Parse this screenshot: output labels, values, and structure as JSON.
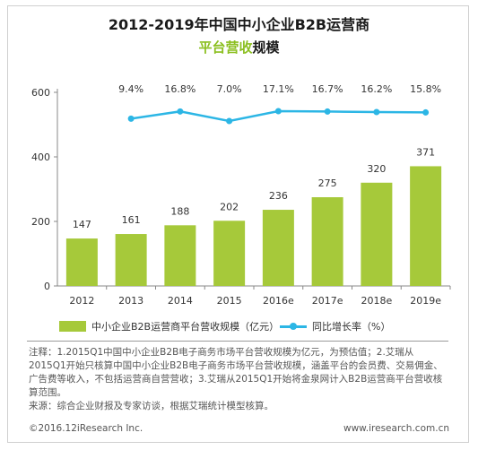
{
  "header": {
    "title": "2012-2019年中国中小企业B2B运营商",
    "subtitle_highlight": "平台营收",
    "subtitle_rest": "规模"
  },
  "chart_data": {
    "type": "bar",
    "categories": [
      "2012",
      "2013",
      "2014",
      "2015",
      "2016e",
      "2017e",
      "2018e",
      "2019e"
    ],
    "series": [
      {
        "name": "中小企业B2B运营商平台营收规模（亿元）",
        "type": "bar",
        "values": [
          147,
          161,
          188,
          202,
          236,
          275,
          320,
          371
        ],
        "color": "#a6c93a"
      },
      {
        "name": "同比增长率（%）",
        "type": "line",
        "values": [
          null,
          9.4,
          16.8,
          7.0,
          17.1,
          16.7,
          16.2,
          15.8
        ],
        "color": "#2cb6e5"
      }
    ],
    "bar_labels": [
      "147",
      "161",
      "188",
      "202",
      "236",
      "275",
      "320",
      "371"
    ],
    "line_labels": [
      "",
      "9.4%",
      "16.8%",
      "7.0%",
      "17.1%",
      "16.7%",
      "16.2%",
      "15.8%"
    ],
    "yticks": [
      "0",
      "200",
      "400",
      "600"
    ],
    "ylim": [
      0,
      600
    ],
    "grid": false,
    "legend_position": "bottom"
  },
  "notes": {
    "line1": "注释：1.2015Q1中国中小企业B2B电子商务市场平台营收规模为亿元，为预估值；2.艾瑞从2015Q1开始只核算中国中小企业B2B电子商务市场平台营收规模，涵盖平台的会员费、交易佣金、广告费等收入，不包括运营商自营营收；3.艾瑞从2015Q1开始将金泉网计入B2B运营商平台营收核算范围。",
    "line2": "来源：综合企业财报及专家访谈，根据艾瑞统计模型核算。"
  },
  "footer": {
    "copyright": "©2016.12iResearch Inc.",
    "website": "www.iresearch.com.cn"
  }
}
